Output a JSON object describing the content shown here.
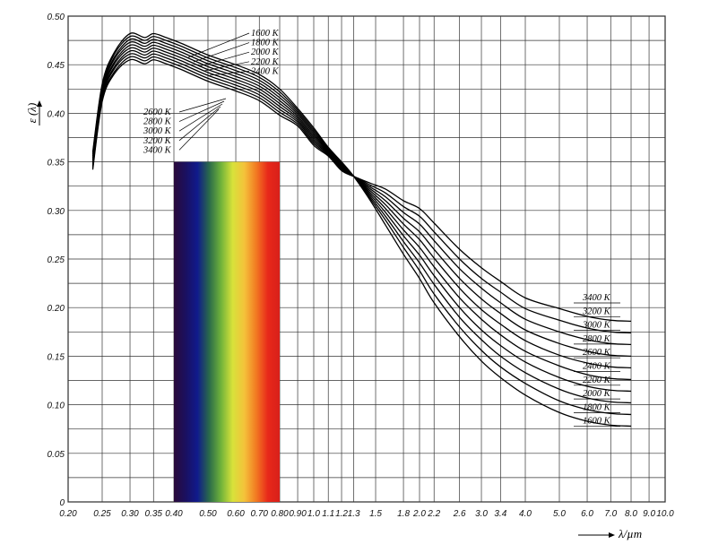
{
  "chart_data": {
    "type": "line",
    "xlabel": "λ/µm",
    "ylabel": "ε (λ)",
    "x_scale": "log",
    "xlim": [
      0.2,
      10
    ],
    "ylim": [
      0,
      0.5
    ],
    "x_ticks": [
      0.2,
      0.25,
      0.3,
      0.35,
      0.4,
      0.5,
      0.6,
      0.7,
      0.8,
      0.9,
      1.0,
      1.1,
      1.2,
      1.3,
      1.5,
      1.8,
      2.0,
      2.2,
      2.6,
      3.0,
      3.4,
      4.0,
      5.0,
      6.0,
      7.0,
      8.0,
      9.0,
      10.0
    ],
    "x_tick_labels": [
      "0.20",
      "0.25",
      "0.30",
      "0.35",
      "0.40",
      "0.50",
      "0.60",
      "0.70",
      "0.80",
      "0.90",
      "1.0",
      "1.1",
      "1.2",
      "1.3",
      "1.5",
      "1.8",
      "2.0",
      "2.2",
      "2.6",
      "3.0",
      "3.4",
      "4.0",
      "5.0",
      "6.0",
      "7.0",
      "8.0",
      "9.0",
      "10.0"
    ],
    "y_ticks": [
      0,
      0.05,
      0.1,
      0.15,
      0.2,
      0.25,
      0.3,
      0.35,
      0.4,
      0.45,
      0.5
    ],
    "y_tick_labels": [
      "0",
      "0.05",
      "0.10",
      "0.15",
      "0.20",
      "0.25",
      "0.30",
      "0.35",
      "0.40",
      "0.45",
      "0.50"
    ],
    "grid": true,
    "spectrum_band": {
      "x_range": [
        0.4,
        0.8
      ],
      "y_top": 0.35,
      "colors": [
        "#2a0a3a",
        "#1a1060",
        "#101a8c",
        "#2a6a4a",
        "#6fb23a",
        "#d8e23a",
        "#f4c23a",
        "#f27a22",
        "#e8281a",
        "#d8201a"
      ]
    },
    "series": [
      {
        "name": "1600 K",
        "label_short": "1600 K",
        "color": "#000000",
        "x": [
          0.235,
          0.25,
          0.27,
          0.3,
          0.33,
          0.35,
          0.38,
          0.42,
          0.5,
          0.6,
          0.7,
          0.8,
          0.9,
          1.0,
          1.1,
          1.2,
          1.3,
          1.45,
          1.6,
          1.8,
          2.0,
          2.2,
          2.6,
          3.0,
          3.4,
          4.0,
          5.0,
          6.0,
          7.0,
          8.0
        ],
        "y": [
          0.36,
          0.43,
          0.462,
          0.482,
          0.478,
          0.482,
          0.478,
          0.472,
          0.46,
          0.45,
          0.44,
          0.425,
          0.405,
          0.385,
          0.365,
          0.35,
          0.335,
          0.31,
          0.285,
          0.255,
          0.23,
          0.205,
          0.17,
          0.145,
          0.128,
          0.11,
          0.092,
          0.083,
          0.079,
          0.078
        ]
      },
      {
        "name": "1800 K",
        "label_short": "1800 K",
        "color": "#000000",
        "x": [
          0.235,
          0.25,
          0.27,
          0.3,
          0.33,
          0.35,
          0.38,
          0.42,
          0.5,
          0.6,
          0.7,
          0.8,
          0.9,
          1.0,
          1.1,
          1.2,
          1.3,
          1.45,
          1.6,
          1.8,
          2.0,
          2.2,
          2.6,
          3.0,
          3.4,
          4.0,
          5.0,
          6.0,
          7.0,
          8.0
        ],
        "y": [
          0.358,
          0.428,
          0.46,
          0.479,
          0.475,
          0.479,
          0.475,
          0.469,
          0.457,
          0.447,
          0.437,
          0.422,
          0.403,
          0.383,
          0.364,
          0.349,
          0.335,
          0.312,
          0.29,
          0.262,
          0.238,
          0.214,
          0.18,
          0.156,
          0.139,
          0.122,
          0.104,
          0.095,
          0.091,
          0.09
        ]
      },
      {
        "name": "2000 K",
        "label_short": "2000 K",
        "color": "#000000",
        "x": [
          0.235,
          0.25,
          0.27,
          0.3,
          0.33,
          0.35,
          0.38,
          0.42,
          0.5,
          0.6,
          0.7,
          0.8,
          0.9,
          1.0,
          1.1,
          1.2,
          1.3,
          1.45,
          1.6,
          1.8,
          2.0,
          2.2,
          2.6,
          3.0,
          3.4,
          4.0,
          5.0,
          6.0,
          7.0,
          8.0
        ],
        "y": [
          0.356,
          0.426,
          0.457,
          0.476,
          0.472,
          0.476,
          0.472,
          0.466,
          0.454,
          0.444,
          0.434,
          0.419,
          0.401,
          0.381,
          0.363,
          0.348,
          0.335,
          0.314,
          0.294,
          0.268,
          0.246,
          0.224,
          0.19,
          0.167,
          0.15,
          0.133,
          0.116,
          0.107,
          0.103,
          0.102
        ]
      },
      {
        "name": "2200 K",
        "label_short": "2200 K",
        "color": "#000000",
        "x": [
          0.235,
          0.25,
          0.27,
          0.3,
          0.33,
          0.35,
          0.38,
          0.42,
          0.5,
          0.6,
          0.7,
          0.8,
          0.9,
          1.0,
          1.1,
          1.2,
          1.3,
          1.45,
          1.6,
          1.8,
          2.0,
          2.2,
          2.6,
          3.0,
          3.4,
          4.0,
          5.0,
          6.0,
          7.0,
          8.0
        ],
        "y": [
          0.354,
          0.424,
          0.455,
          0.473,
          0.469,
          0.473,
          0.469,
          0.463,
          0.451,
          0.441,
          0.431,
          0.416,
          0.399,
          0.379,
          0.362,
          0.347,
          0.335,
          0.316,
          0.298,
          0.274,
          0.254,
          0.233,
          0.2,
          0.177,
          0.161,
          0.144,
          0.128,
          0.119,
          0.115,
          0.114
        ]
      },
      {
        "name": "2400 K",
        "label_short": "2400 K",
        "color": "#000000",
        "x": [
          0.235,
          0.25,
          0.27,
          0.3,
          0.33,
          0.35,
          0.38,
          0.42,
          0.5,
          0.6,
          0.7,
          0.8,
          0.9,
          1.0,
          1.1,
          1.2,
          1.3,
          1.45,
          1.6,
          1.8,
          2.0,
          2.2,
          2.6,
          3.0,
          3.4,
          4.0,
          5.0,
          6.0,
          7.0,
          8.0
        ],
        "y": [
          0.352,
          0.422,
          0.452,
          0.47,
          0.466,
          0.47,
          0.466,
          0.46,
          0.448,
          0.438,
          0.428,
          0.413,
          0.397,
          0.377,
          0.361,
          0.346,
          0.335,
          0.318,
          0.302,
          0.28,
          0.262,
          0.242,
          0.21,
          0.188,
          0.172,
          0.155,
          0.14,
          0.131,
          0.127,
          0.126
        ]
      },
      {
        "name": "2600 K",
        "label_short": "2600 K",
        "color": "#000000",
        "x": [
          0.235,
          0.25,
          0.27,
          0.3,
          0.33,
          0.35,
          0.38,
          0.42,
          0.5,
          0.6,
          0.7,
          0.8,
          0.9,
          1.0,
          1.1,
          1.2,
          1.3,
          1.45,
          1.6,
          1.8,
          2.0,
          2.2,
          2.6,
          3.0,
          3.4,
          4.0,
          5.0,
          6.0,
          7.0,
          8.0
        ],
        "y": [
          0.35,
          0.42,
          0.45,
          0.467,
          0.463,
          0.467,
          0.463,
          0.457,
          0.445,
          0.435,
          0.425,
          0.41,
          0.395,
          0.375,
          0.36,
          0.345,
          0.335,
          0.32,
          0.306,
          0.286,
          0.27,
          0.251,
          0.22,
          0.198,
          0.183,
          0.166,
          0.151,
          0.143,
          0.139,
          0.138
        ]
      },
      {
        "name": "2800 K",
        "label_short": "2800 K",
        "color": "#000000",
        "x": [
          0.235,
          0.25,
          0.27,
          0.3,
          0.33,
          0.35,
          0.38,
          0.42,
          0.5,
          0.6,
          0.7,
          0.8,
          0.9,
          1.0,
          1.1,
          1.2,
          1.3,
          1.45,
          1.6,
          1.8,
          2.0,
          2.2,
          2.6,
          3.0,
          3.4,
          4.0,
          5.0,
          6.0,
          7.0,
          8.0
        ],
        "y": [
          0.348,
          0.418,
          0.447,
          0.464,
          0.46,
          0.464,
          0.46,
          0.454,
          0.442,
          0.432,
          0.422,
          0.407,
          0.393,
          0.373,
          0.359,
          0.344,
          0.335,
          0.322,
          0.31,
          0.292,
          0.278,
          0.26,
          0.23,
          0.209,
          0.194,
          0.177,
          0.163,
          0.155,
          0.151,
          0.15
        ]
      },
      {
        "name": "3000 K",
        "label_short": "3000 K",
        "color": "#000000",
        "x": [
          0.235,
          0.25,
          0.27,
          0.3,
          0.33,
          0.35,
          0.38,
          0.42,
          0.5,
          0.6,
          0.7,
          0.8,
          0.9,
          1.0,
          1.1,
          1.2,
          1.3,
          1.45,
          1.6,
          1.8,
          2.0,
          2.2,
          2.6,
          3.0,
          3.4,
          4.0,
          5.0,
          6.0,
          7.0,
          8.0
        ],
        "y": [
          0.346,
          0.416,
          0.445,
          0.461,
          0.457,
          0.461,
          0.457,
          0.451,
          0.439,
          0.429,
          0.419,
          0.404,
          0.391,
          0.371,
          0.358,
          0.343,
          0.335,
          0.324,
          0.314,
          0.298,
          0.286,
          0.269,
          0.24,
          0.22,
          0.205,
          0.188,
          0.175,
          0.167,
          0.163,
          0.162
        ]
      },
      {
        "name": "3200 K",
        "label_short": "3200 K",
        "color": "#000000",
        "x": [
          0.235,
          0.25,
          0.27,
          0.3,
          0.33,
          0.35,
          0.38,
          0.42,
          0.5,
          0.6,
          0.7,
          0.8,
          0.9,
          1.0,
          1.1,
          1.2,
          1.3,
          1.45,
          1.6,
          1.8,
          2.0,
          2.2,
          2.6,
          3.0,
          3.4,
          4.0,
          5.0,
          6.0,
          7.0,
          8.0
        ],
        "y": [
          0.344,
          0.414,
          0.442,
          0.458,
          0.454,
          0.458,
          0.454,
          0.448,
          0.436,
          0.426,
          0.416,
          0.401,
          0.389,
          0.369,
          0.357,
          0.342,
          0.335,
          0.326,
          0.318,
          0.304,
          0.294,
          0.278,
          0.25,
          0.23,
          0.216,
          0.199,
          0.187,
          0.179,
          0.175,
          0.174
        ]
      },
      {
        "name": "3400 K",
        "label_short": "3400 K",
        "color": "#000000",
        "x": [
          0.235,
          0.25,
          0.27,
          0.3,
          0.33,
          0.35,
          0.38,
          0.42,
          0.5,
          0.6,
          0.7,
          0.8,
          0.9,
          1.0,
          1.1,
          1.2,
          1.3,
          1.45,
          1.6,
          1.8,
          2.0,
          2.2,
          2.6,
          3.0,
          3.4,
          4.0,
          5.0,
          6.0,
          7.0,
          8.0
        ],
        "y": [
          0.342,
          0.412,
          0.44,
          0.455,
          0.451,
          0.455,
          0.451,
          0.445,
          0.433,
          0.423,
          0.413,
          0.398,
          0.387,
          0.367,
          0.356,
          0.341,
          0.335,
          0.328,
          0.322,
          0.31,
          0.302,
          0.287,
          0.26,
          0.241,
          0.227,
          0.21,
          0.199,
          0.191,
          0.187,
          0.186
        ]
      }
    ],
    "annotations": {
      "top_right_labels": [
        "1600 K",
        "1800 K",
        "2000 K",
        "2200 K",
        "2400 K"
      ],
      "mid_left_labels": [
        "2600 K",
        "2800 K",
        "3000 K",
        "3200 K",
        "3400 K"
      ],
      "right_labels": [
        "3400 K",
        "3200 K",
        "3000 K",
        "2800 K",
        "2600 K",
        "2400 K",
        "2200 K",
        "2000 K",
        "1800 K",
        "1600 K"
      ]
    }
  }
}
